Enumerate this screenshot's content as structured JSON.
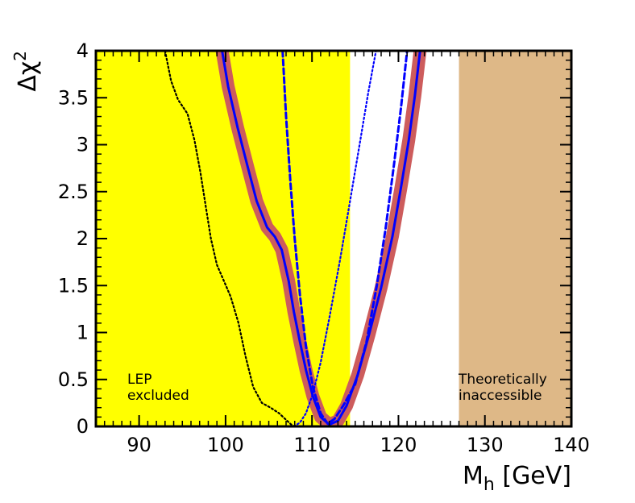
{
  "chart_data": {
    "type": "line",
    "title": "",
    "xlabel": "M",
    "xlabel_sub": "h",
    "xlabel_unit": "[GeV]",
    "ylabel": "Δχ",
    "ylabel_sup": "2",
    "xlim": [
      85,
      140
    ],
    "ylim": [
      0,
      4
    ],
    "x_ticks": [
      90,
      100,
      110,
      120,
      130,
      140
    ],
    "x_tick_labels": [
      "90",
      "100",
      "110",
      "120",
      "130",
      "140"
    ],
    "y_ticks": [
      0,
      0.5,
      1,
      1.5,
      2,
      2.5,
      3,
      3.5,
      4
    ],
    "y_tick_labels": [
      "0",
      "0.5",
      "1",
      "1.5",
      "2",
      "2.5",
      "3",
      "3.5",
      "4"
    ],
    "x_minor_step": 1,
    "y_minor_step": 0.1,
    "regions": [
      {
        "name": "lep-excluded",
        "x0": 85,
        "x1": 114.4,
        "color": "#ffff00",
        "label_lines": [
          "LEP",
          "excluded"
        ]
      },
      {
        "name": "theoretically-inaccessible",
        "x0": 127,
        "x1": 140,
        "color": "#deb887",
        "label_lines": [
          "Theoretically",
          "inaccessible"
        ]
      }
    ],
    "series": [
      {
        "name": "band",
        "style": "band",
        "color": "#cd5c5c",
        "x": [
          99.6,
          100.3,
          101.4,
          102.6,
          103.6,
          104.8,
          105.7,
          106.5,
          107.3,
          107.9,
          108.6,
          109.3,
          110.1,
          111.0,
          112.0,
          113.0,
          114.0,
          115.3,
          116.6,
          118.0,
          119.3,
          120.3,
          121.2,
          121.9,
          122.5
        ],
        "y": [
          4.0,
          3.62,
          3.18,
          2.75,
          2.4,
          2.12,
          2.02,
          1.88,
          1.55,
          1.22,
          0.9,
          0.6,
          0.32,
          0.1,
          0.02,
          0.06,
          0.22,
          0.55,
          0.98,
          1.48,
          2.02,
          2.55,
          3.05,
          3.52,
          4.0
        ]
      },
      {
        "name": "central-solid",
        "style": "solid",
        "color": "#0000ff",
        "x": [
          99.6,
          100.3,
          101.4,
          102.6,
          103.6,
          104.8,
          105.7,
          106.5,
          107.3,
          107.9,
          108.6,
          109.3,
          110.1,
          111.0,
          112.0,
          113.0,
          114.0,
          115.3,
          116.6,
          118.0,
          119.3,
          120.3,
          121.2,
          121.9,
          122.5
        ],
        "y": [
          4.0,
          3.62,
          3.18,
          2.75,
          2.4,
          2.12,
          2.02,
          1.88,
          1.55,
          1.22,
          0.9,
          0.6,
          0.32,
          0.1,
          0.02,
          0.06,
          0.22,
          0.55,
          0.98,
          1.48,
          2.02,
          2.55,
          3.05,
          3.52,
          4.0
        ]
      },
      {
        "name": "blue-dashed",
        "style": "dashed",
        "color": "#0000ff",
        "x": [
          106.6,
          107.0,
          107.5,
          108.0,
          108.6,
          109.3,
          110.1,
          111.0,
          111.8,
          112.6,
          113.6,
          115.0,
          116.3,
          117.5,
          118.5,
          119.5,
          120.3,
          121.0
        ],
        "y": [
          4.0,
          3.3,
          2.6,
          2.0,
          1.4,
          0.85,
          0.42,
          0.14,
          0.03,
          0.08,
          0.22,
          0.45,
          0.9,
          1.5,
          2.1,
          2.8,
          3.4,
          4.0
        ]
      },
      {
        "name": "blue-dotted",
        "style": "dotted",
        "color": "#0000ff",
        "x": [
          107.9,
          108.6,
          109.3,
          110.1,
          111.0,
          112.0,
          113.2,
          114.4,
          115.5,
          116.5,
          117.4
        ],
        "y": [
          0.0,
          0.04,
          0.14,
          0.35,
          0.68,
          1.15,
          1.75,
          2.4,
          3.0,
          3.55,
          4.0
        ]
      },
      {
        "name": "black-dotted",
        "style": "dotted",
        "color": "#000000",
        "x": [
          93.0,
          93.7,
          94.5,
          95.6,
          96.4,
          97.1,
          97.7,
          98.3,
          99.0,
          99.8,
          100.6,
          101.5,
          102.3,
          103.2,
          104.2,
          105.2,
          106.2,
          107.0,
          107.6,
          108.0
        ],
        "y": [
          4.0,
          3.68,
          3.48,
          3.33,
          3.05,
          2.7,
          2.35,
          2.0,
          1.72,
          1.55,
          1.38,
          1.1,
          0.75,
          0.42,
          0.25,
          0.2,
          0.14,
          0.07,
          0.02,
          0.0
        ]
      }
    ]
  }
}
